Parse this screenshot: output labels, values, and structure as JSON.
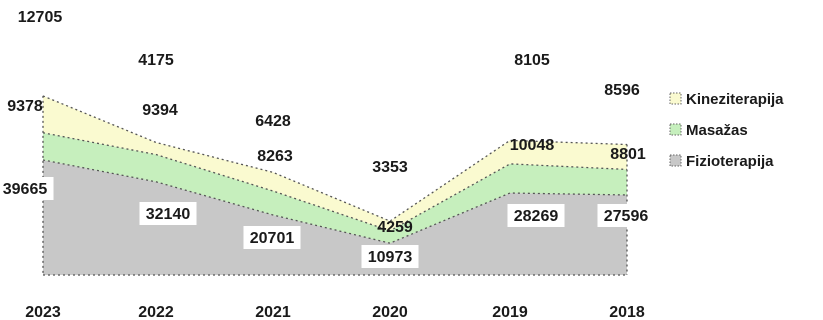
{
  "chart_data": {
    "type": "area",
    "stacked": true,
    "categories": [
      "2023",
      "2022",
      "2021",
      "2020",
      "2019",
      "2018"
    ],
    "series": [
      {
        "name": "Fizioterapija",
        "values": [
          39665,
          32140,
          20701,
          10973,
          28269,
          27596
        ],
        "color": "#c8c8c8"
      },
      {
        "name": "Masažas",
        "values": [
          9378,
          9394,
          8263,
          4259,
          10048,
          8801
        ],
        "color": "#c6efbd"
      },
      {
        "name": "Kineziterapija",
        "values": [
          12705,
          4175,
          6428,
          3353,
          8105,
          8596
        ],
        "color": "#fafad0"
      }
    ],
    "legend_position": "right",
    "grid": false
  }
}
